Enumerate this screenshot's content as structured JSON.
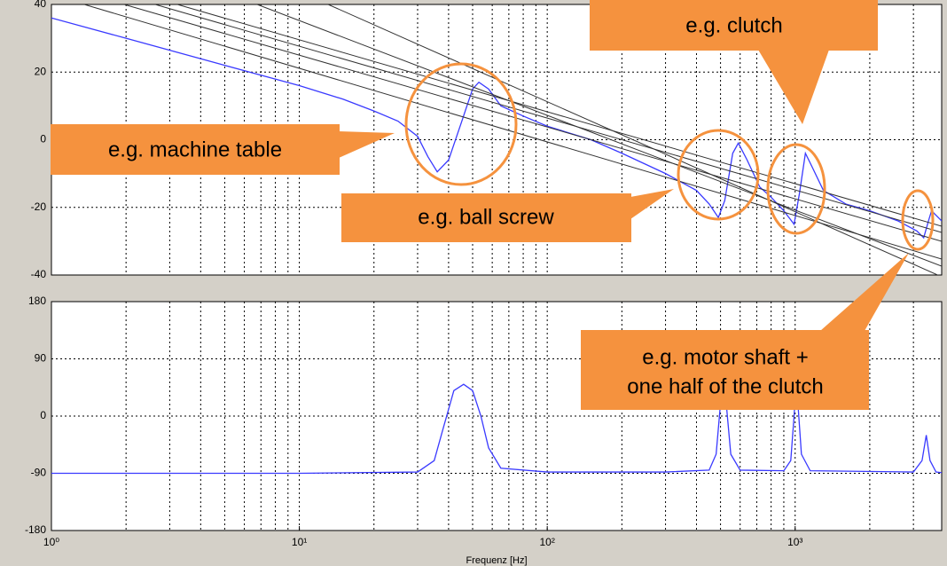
{
  "chart_data": [
    {
      "type": "line",
      "log_x": true,
      "grid": true,
      "color": "#3a3aff",
      "xlim": [
        1,
        3900
      ],
      "ylim": [
        -40,
        40
      ],
      "yticks": [
        -40,
        -20,
        0,
        20,
        40
      ],
      "x": [
        1,
        2,
        5,
        10,
        15,
        20,
        25,
        30,
        33,
        36,
        40,
        45,
        50,
        53,
        58,
        65,
        80,
        100,
        150,
        200,
        300,
        400,
        450,
        490,
        520,
        560,
        590,
        640,
        720,
        800,
        900,
        990,
        1040,
        1100,
        1170,
        1300,
        1600,
        2000,
        2600,
        3100,
        3300,
        3450,
        3550,
        3900
      ],
      "values": [
        36,
        30,
        22,
        16,
        12,
        8.5,
        5.5,
        1,
        -5,
        -9.5,
        -6,
        5,
        15,
        17,
        15,
        10,
        7,
        4,
        0,
        -4,
        -10,
        -15,
        -19,
        -23,
        -18,
        -4,
        -1,
        -6,
        -14,
        -17,
        -21,
        -25,
        -16,
        -4,
        -8,
        -15,
        -19,
        -21,
        -24,
        -27,
        -29,
        -24,
        -21,
        -24
      ],
      "annotations": [
        {
          "text": "e.g. clutch"
        },
        {
          "text": "e.g. machine table"
        },
        {
          "text": "e.g. ball screw"
        },
        {
          "lines": [
            "e.g. motor shaft +",
            "one half of the clutch"
          ]
        }
      ]
    },
    {
      "type": "line",
      "log_x": true,
      "grid": true,
      "color": "#3a3aff",
      "xlim": [
        1,
        3900
      ],
      "ylim": [
        -180,
        180
      ],
      "yticks": [
        -180,
        -90,
        0,
        90,
        180
      ],
      "xticks": [
        {
          "value": 1,
          "label": "10⁰"
        },
        {
          "value": 10,
          "label": "10¹"
        },
        {
          "value": 100,
          "label": "10²"
        },
        {
          "value": 1000,
          "label": "10³"
        }
      ],
      "xlabel": "Frequenz  [Hz]",
      "x": [
        1,
        10,
        30,
        35,
        38,
        42,
        46,
        50,
        54,
        58,
        65,
        100,
        300,
        450,
        480,
        500,
        515,
        530,
        550,
        600,
        900,
        960,
        990,
        1010,
        1030,
        1060,
        1150,
        3000,
        3250,
        3380,
        3500,
        3700,
        3900
      ],
      "values": [
        -90,
        -90,
        -88,
        -70,
        -20,
        40,
        50,
        40,
        0,
        -50,
        -82,
        -88,
        -88,
        -85,
        -60,
        20,
        55,
        10,
        -60,
        -85,
        -86,
        -70,
        0,
        55,
        10,
        -60,
        -86,
        -88,
        -70,
        -30,
        -70,
        -88,
        -89
      ]
    }
  ]
}
